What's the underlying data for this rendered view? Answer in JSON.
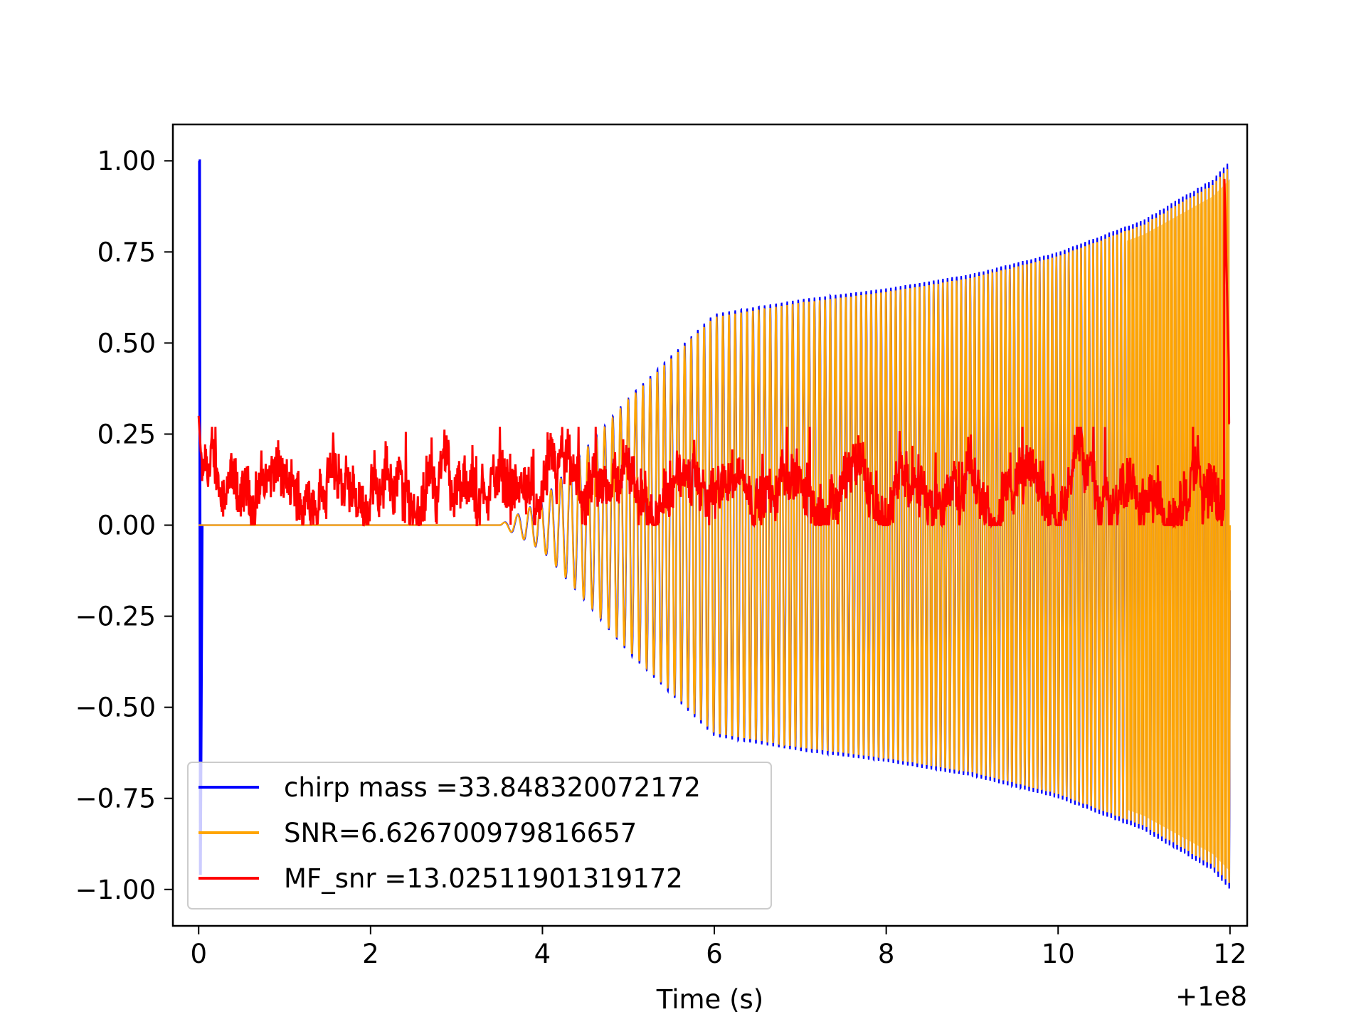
{
  "chart_data": {
    "type": "line",
    "title": "",
    "xlabel": "Time (s)",
    "ylabel": "",
    "x_offset_label": "+1e8",
    "xlim": [
      -0.3,
      12.2
    ],
    "ylim": [
      -1.1,
      1.1
    ],
    "x_ticks": [
      0,
      2,
      4,
      6,
      8,
      10,
      12
    ],
    "x_tick_labels": [
      "0",
      "2",
      "4",
      "6",
      "8",
      "10",
      "12"
    ],
    "y_ticks": [
      1.0,
      0.75,
      0.5,
      0.25,
      0.0,
      -0.25,
      -0.5,
      -0.75,
      -1.0
    ],
    "y_tick_labels": [
      "1.00",
      "0.75",
      "0.50",
      "0.25",
      "0.00",
      "−0.25",
      "−0.50",
      "−0.75",
      "−1.00"
    ],
    "legend_position": "lower-left",
    "series": [
      {
        "name": "chirp mass =33.848320072172",
        "color": "#0000ff",
        "envelope_x": [
          0,
          3.5,
          4,
          5,
          6,
          7,
          8,
          9,
          10,
          11,
          11.8,
          12
        ],
        "envelope_amp": [
          0,
          0,
          0.07,
          0.35,
          0.58,
          0.62,
          0.65,
          0.69,
          0.75,
          0.84,
          0.95,
          1.0
        ],
        "start_spike": {
          "x": 0.0,
          "y_max": 1.0,
          "y_min": -0.96
        }
      },
      {
        "name": "SNR=6.626700979816657",
        "color": "#ffa500",
        "envelope_x": [
          0,
          3.5,
          4,
          5,
          6,
          7,
          8,
          9,
          10,
          11,
          11.8,
          12
        ],
        "envelope_amp": [
          0,
          0,
          0.07,
          0.35,
          0.58,
          0.62,
          0.65,
          0.69,
          0.75,
          0.84,
          0.95,
          1.0
        ]
      },
      {
        "name": "MF_snr =13.02511901319172",
        "color": "#ff0000",
        "baseline": 0.1,
        "noise_range": [
          0.0,
          0.27
        ],
        "start_value": 0.3,
        "end_peak": 1.0,
        "end_value": 0.28
      }
    ]
  }
}
